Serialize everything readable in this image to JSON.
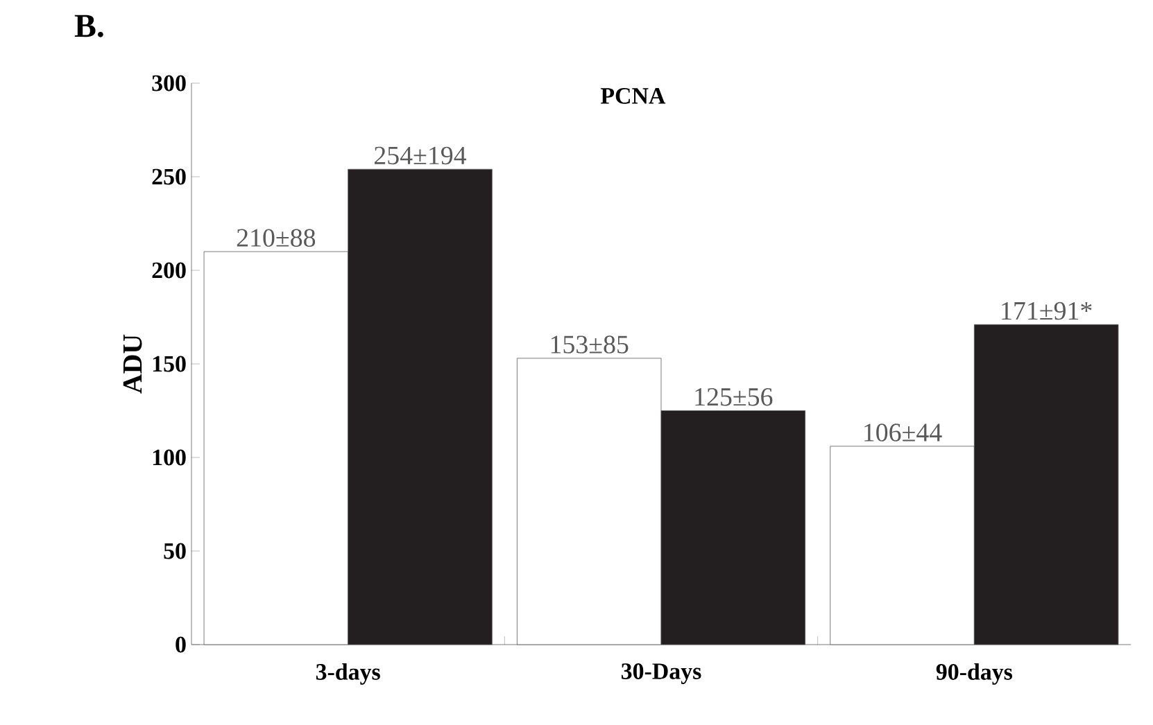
{
  "chart_data": {
    "type": "bar",
    "title": "PCNA",
    "ylabel": "ADU",
    "annotations": [
      "B."
    ],
    "categories": [
      "3-days",
      "30-Days",
      "90-days"
    ],
    "series": [
      {
        "color": "#ffffff",
        "values": [
          210,
          153,
          106
        ],
        "value_labels": [
          "210±88",
          "153±85",
          "106±44"
        ]
      },
      {
        "color": "#231f20",
        "values": [
          254,
          125,
          171
        ],
        "value_labels": [
          "254±194",
          "125±56",
          "171±91*"
        ]
      }
    ],
    "ylim": [
      0,
      300
    ],
    "yticks": [
      0,
      50,
      100,
      150,
      200,
      250,
      300
    ]
  }
}
